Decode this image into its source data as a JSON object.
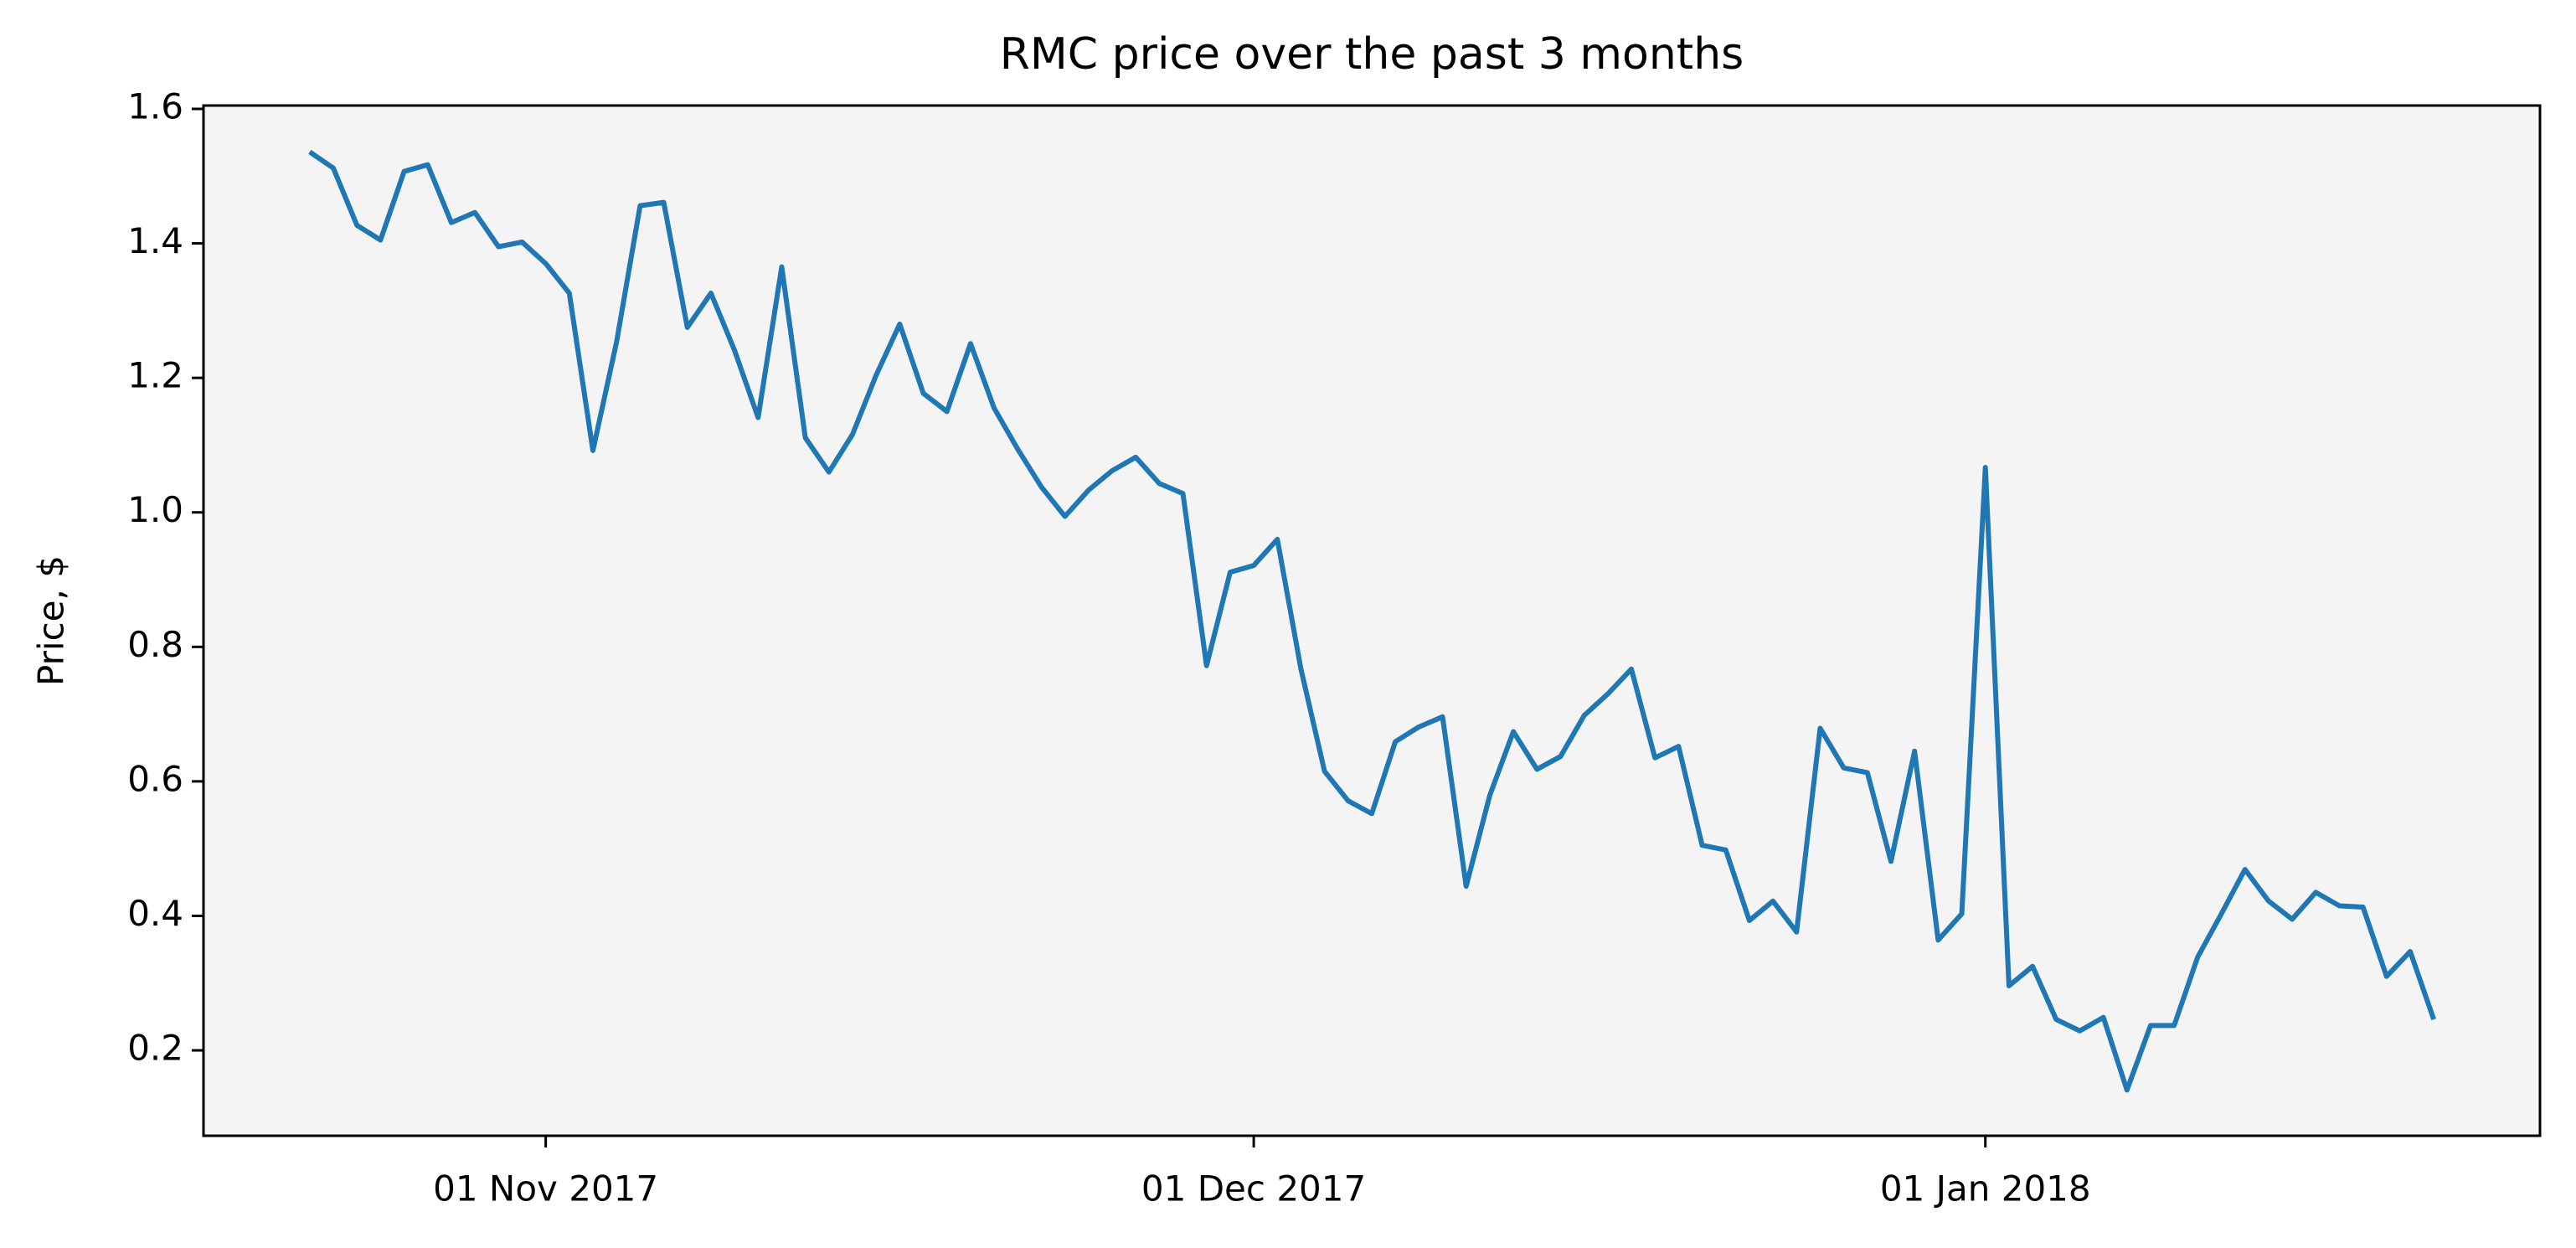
{
  "chart_data": {
    "type": "line",
    "title": "RMC price over the past 3 months",
    "y_label": "Price, $",
    "x": [
      "2017-10-22",
      "2017-10-23",
      "2017-10-24",
      "2017-10-25",
      "2017-10-26",
      "2017-10-27",
      "2017-10-28",
      "2017-10-29",
      "2017-10-30",
      "2017-10-31",
      "2017-11-01",
      "2017-11-02",
      "2017-11-03",
      "2017-11-04",
      "2017-11-05",
      "2017-11-06",
      "2017-11-07",
      "2017-11-08",
      "2017-11-09",
      "2017-11-10",
      "2017-11-11",
      "2017-11-12",
      "2017-11-13",
      "2017-11-14",
      "2017-11-15",
      "2017-11-16",
      "2017-11-17",
      "2017-11-18",
      "2017-11-19",
      "2017-11-20",
      "2017-11-21",
      "2017-11-22",
      "2017-11-23",
      "2017-11-24",
      "2017-11-25",
      "2017-11-26",
      "2017-11-27",
      "2017-11-28",
      "2017-11-29",
      "2017-11-30",
      "2017-12-01",
      "2017-12-02",
      "2017-12-03",
      "2017-12-04",
      "2017-12-05",
      "2017-12-06",
      "2017-12-07",
      "2017-12-08",
      "2017-12-09",
      "2017-12-10",
      "2017-12-11",
      "2017-12-12",
      "2017-12-13",
      "2017-12-14",
      "2017-12-15",
      "2017-12-16",
      "2017-12-17",
      "2017-12-18",
      "2017-12-19",
      "2017-12-20",
      "2017-12-21",
      "2017-12-22",
      "2017-12-23",
      "2017-12-24",
      "2017-12-25",
      "2017-12-26",
      "2017-12-27",
      "2017-12-28",
      "2017-12-29",
      "2017-12-30",
      "2017-12-31",
      "2018-01-01",
      "2018-01-02",
      "2018-01-03",
      "2018-01-04",
      "2018-01-05",
      "2018-01-06",
      "2018-01-07",
      "2018-01-08",
      "2018-01-09",
      "2018-01-10",
      "2018-01-11",
      "2018-01-12",
      "2018-01-13",
      "2018-01-14",
      "2018-01-15",
      "2018-01-16",
      "2018-01-17",
      "2018-01-18",
      "2018-01-19",
      "2018-01-20"
    ],
    "series": [
      {
        "name": "RMC",
        "color": "#1f77b4",
        "values": [
          1.536,
          1.512,
          1.427,
          1.405,
          1.507,
          1.517,
          1.431,
          1.446,
          1.395,
          1.402,
          1.37,
          1.326,
          1.092,
          1.253,
          1.456,
          1.461,
          1.275,
          1.326,
          1.241,
          1.141,
          1.365,
          1.111,
          1.06,
          1.116,
          1.204,
          1.28,
          1.177,
          1.15,
          1.251,
          1.155,
          1.094,
          1.038,
          0.994,
          1.033,
          1.062,
          1.082,
          1.043,
          1.028,
          0.772,
          0.911,
          0.921,
          0.96,
          0.767,
          0.615,
          0.571,
          0.552,
          0.659,
          0.681,
          0.696,
          0.444,
          0.579,
          0.674,
          0.618,
          0.637,
          0.698,
          0.73,
          0.767,
          0.635,
          0.652,
          0.505,
          0.498,
          0.393,
          0.422,
          0.376,
          0.679,
          0.62,
          0.613,
          0.481,
          0.645,
          0.364,
          0.403,
          1.067,
          0.296,
          0.325,
          0.246,
          0.229,
          0.249,
          0.141,
          0.237,
          0.237,
          0.339,
          0.403,
          0.469,
          0.422,
          0.395,
          0.435,
          0.415,
          0.413,
          0.31,
          0.347,
          0.246
        ]
      }
    ],
    "xlim": [
      "2017-10-17T12:00",
      "2018-01-24T12:00"
    ],
    "xticks": [
      {
        "value": "2017-11-01",
        "label": "01 Nov 2017"
      },
      {
        "value": "2017-12-01",
        "label": "01 Dec 2017"
      },
      {
        "value": "2018-01-01",
        "label": "01 Jan 2018"
      }
    ],
    "ylim": [
      0.073,
      1.605
    ],
    "yticks": [
      0.2,
      0.4,
      0.6,
      0.8,
      {
        "value": 1,
        "label": "1.0"
      },
      1.2,
      1.4,
      1.6
    ],
    "background": "#f4f4f4"
  }
}
